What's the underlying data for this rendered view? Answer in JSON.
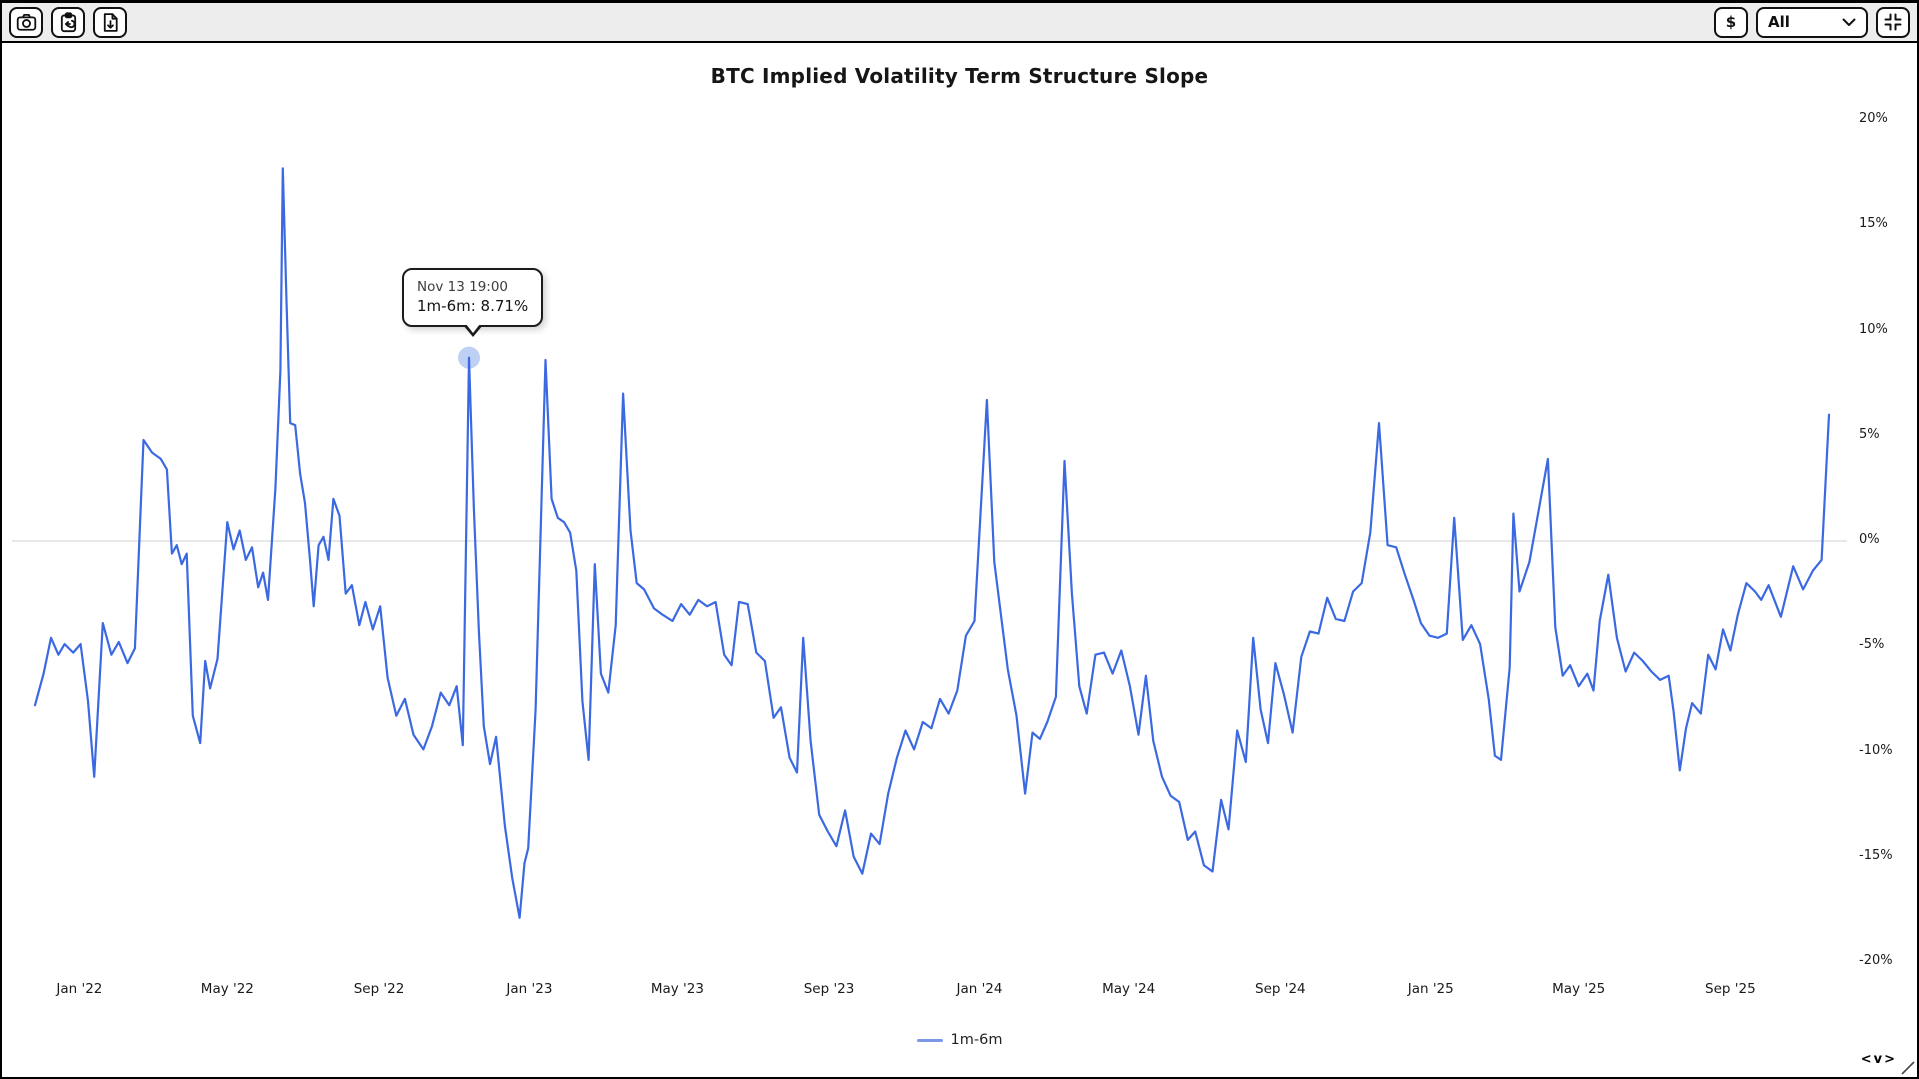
{
  "toolbar": {
    "screenshot_button": {
      "icon": "camera-icon"
    },
    "copy_button": {
      "icon": "clipboard-paste-icon"
    },
    "download_button": {
      "icon": "file-download-icon"
    },
    "currency_button": {
      "label": "$"
    },
    "range_select": {
      "value": "All",
      "icon": "chevron-down-icon"
    },
    "fit_button": {
      "icon": "collapse-corners-icon"
    }
  },
  "tooltip": {
    "date_label": "Nov 13 19:00",
    "value_label": "1m-6m: 8.71%"
  },
  "legend": {
    "series_label": "1m-6m"
  },
  "pan_controls": {
    "left": "<",
    "down": "v",
    "right": ">"
  },
  "chart_data": {
    "type": "line",
    "title": "BTC Implied Volatility Term Structure Slope",
    "xlabel": "",
    "ylabel": "",
    "ylim": [
      -20,
      20
    ],
    "grid": "zero-line-only",
    "legend_position": "bottom",
    "colors": {
      "line": "#3b69e1",
      "legend_swatch": "#7d96ea",
      "marker_fill": "#b8cbf4",
      "gridline": "#d9d9d9",
      "text": "#1a1a1a"
    },
    "y_axis": {
      "side": "right",
      "ticks": [
        {
          "v": 20,
          "label": "20%"
        },
        {
          "v": 15,
          "label": "15%"
        },
        {
          "v": 10,
          "label": "10%"
        },
        {
          "v": 5,
          "label": "5%"
        },
        {
          "v": 0,
          "label": "0%"
        },
        {
          "v": -5,
          "label": "-5%"
        },
        {
          "v": -10,
          "label": "-10%"
        },
        {
          "v": -15,
          "label": "-15%"
        },
        {
          "v": -20,
          "label": "-20%"
        }
      ]
    },
    "x_axis": {
      "ticks": [
        {
          "date": "2022-01-01",
          "label": "Jan '22"
        },
        {
          "date": "2022-05-01",
          "label": "May '22"
        },
        {
          "date": "2022-09-01",
          "label": "Sep '22"
        },
        {
          "date": "2023-01-01",
          "label": "Jan '23"
        },
        {
          "date": "2023-05-01",
          "label": "May '23"
        },
        {
          "date": "2023-09-01",
          "label": "Sep '23"
        },
        {
          "date": "2024-01-01",
          "label": "Jan '24"
        },
        {
          "date": "2024-05-01",
          "label": "May '24"
        },
        {
          "date": "2024-09-01",
          "label": "Sep '24"
        },
        {
          "date": "2025-01-01",
          "label": "Jan '25"
        },
        {
          "date": "2025-05-01",
          "label": "May '25"
        },
        {
          "date": "2025-09-01",
          "label": "Sep '25"
        }
      ]
    },
    "highlight": {
      "date": "2022-11-13",
      "value": 8.71
    },
    "series": [
      {
        "name": "1m-6m",
        "points": [
          [
            "2021-11-26",
            -7.8
          ],
          [
            "2021-12-03",
            -6.3
          ],
          [
            "2021-12-09",
            -4.6
          ],
          [
            "2021-12-15",
            -5.4
          ],
          [
            "2021-12-20",
            -4.9
          ],
          [
            "2021-12-27",
            -5.3
          ],
          [
            "2022-01-02",
            -4.9
          ],
          [
            "2022-01-08",
            -7.6
          ],
          [
            "2022-01-13",
            -11.2
          ],
          [
            "2022-01-20",
            -3.9
          ],
          [
            "2022-01-27",
            -5.4
          ],
          [
            "2022-02-02",
            -4.8
          ],
          [
            "2022-02-09",
            -5.8
          ],
          [
            "2022-02-15",
            -5.1
          ],
          [
            "2022-02-22",
            4.8
          ],
          [
            "2022-03-01",
            4.2
          ],
          [
            "2022-03-08",
            3.9
          ],
          [
            "2022-03-13",
            3.4
          ],
          [
            "2022-03-17",
            -0.6
          ],
          [
            "2022-03-21",
            -0.2
          ],
          [
            "2022-03-25",
            -1.1
          ],
          [
            "2022-03-29",
            -0.6
          ],
          [
            "2022-04-03",
            -8.3
          ],
          [
            "2022-04-09",
            -9.6
          ],
          [
            "2022-04-13",
            -5.7
          ],
          [
            "2022-04-17",
            -7.0
          ],
          [
            "2022-04-23",
            -5.6
          ],
          [
            "2022-05-01",
            0.9
          ],
          [
            "2022-05-06",
            -0.4
          ],
          [
            "2022-05-11",
            0.5
          ],
          [
            "2022-05-16",
            -0.9
          ],
          [
            "2022-05-21",
            -0.3
          ],
          [
            "2022-05-26",
            -2.2
          ],
          [
            "2022-05-30",
            -1.5
          ],
          [
            "2022-06-03",
            -2.8
          ],
          [
            "2022-06-09",
            2.5
          ],
          [
            "2022-06-13",
            8.1
          ],
          [
            "2022-06-15",
            17.7
          ],
          [
            "2022-06-18",
            11.4
          ],
          [
            "2022-06-21",
            5.6
          ],
          [
            "2022-06-25",
            5.5
          ],
          [
            "2022-06-29",
            3.2
          ],
          [
            "2022-07-03",
            1.8
          ],
          [
            "2022-07-07",
            -0.9
          ],
          [
            "2022-07-10",
            -3.1
          ],
          [
            "2022-07-14",
            -0.2
          ],
          [
            "2022-07-18",
            0.2
          ],
          [
            "2022-07-22",
            -0.9
          ],
          [
            "2022-07-26",
            2.0
          ],
          [
            "2022-07-31",
            1.2
          ],
          [
            "2022-08-05",
            -2.5
          ],
          [
            "2022-08-10",
            -2.1
          ],
          [
            "2022-08-16",
            -4.0
          ],
          [
            "2022-08-21",
            -2.9
          ],
          [
            "2022-08-27",
            -4.2
          ],
          [
            "2022-09-02",
            -3.1
          ],
          [
            "2022-09-08",
            -6.5
          ],
          [
            "2022-09-15",
            -8.3
          ],
          [
            "2022-09-22",
            -7.5
          ],
          [
            "2022-09-29",
            -9.2
          ],
          [
            "2022-10-07",
            -9.9
          ],
          [
            "2022-10-14",
            -8.8
          ],
          [
            "2022-10-21",
            -7.2
          ],
          [
            "2022-10-28",
            -7.8
          ],
          [
            "2022-11-03",
            -6.9
          ],
          [
            "2022-11-08",
            -9.7
          ],
          [
            "2022-11-13",
            8.71
          ],
          [
            "2022-11-17",
            1.5
          ],
          [
            "2022-11-21",
            -4.3
          ],
          [
            "2022-11-25",
            -8.8
          ],
          [
            "2022-11-30",
            -10.6
          ],
          [
            "2022-12-05",
            -9.3
          ],
          [
            "2022-12-12",
            -13.5
          ],
          [
            "2022-12-18",
            -16.0
          ],
          [
            "2022-12-24",
            -17.9
          ],
          [
            "2022-12-28",
            -15.3
          ],
          [
            "2022-12-31",
            -14.6
          ],
          [
            "2023-01-06",
            -8.0
          ],
          [
            "2023-01-14",
            8.6
          ],
          [
            "2023-01-19",
            2.0
          ],
          [
            "2023-01-24",
            1.1
          ],
          [
            "2023-01-29",
            0.9
          ],
          [
            "2023-02-03",
            0.4
          ],
          [
            "2023-02-08",
            -1.4
          ],
          [
            "2023-02-13",
            -7.6
          ],
          [
            "2023-02-18",
            -10.4
          ],
          [
            "2023-02-23",
            -1.1
          ],
          [
            "2023-02-28",
            -6.3
          ],
          [
            "2023-03-06",
            -7.2
          ],
          [
            "2023-03-12",
            -4.0
          ],
          [
            "2023-03-18",
            7.0
          ],
          [
            "2023-03-24",
            0.5
          ],
          [
            "2023-03-29",
            -2.0
          ],
          [
            "2023-04-04",
            -2.3
          ],
          [
            "2023-04-12",
            -3.2
          ],
          [
            "2023-04-19",
            -3.5
          ],
          [
            "2023-04-27",
            -3.8
          ],
          [
            "2023-05-04",
            -3.0
          ],
          [
            "2023-05-11",
            -3.5
          ],
          [
            "2023-05-18",
            -2.8
          ],
          [
            "2023-05-25",
            -3.1
          ],
          [
            "2023-06-01",
            -2.9
          ],
          [
            "2023-06-08",
            -5.4
          ],
          [
            "2023-06-14",
            -5.9
          ],
          [
            "2023-06-20",
            -2.9
          ],
          [
            "2023-06-27",
            -3.0
          ],
          [
            "2023-07-04",
            -5.3
          ],
          [
            "2023-07-11",
            -5.7
          ],
          [
            "2023-07-18",
            -8.4
          ],
          [
            "2023-07-24",
            -7.9
          ],
          [
            "2023-07-31",
            -10.3
          ],
          [
            "2023-08-06",
            -11.0
          ],
          [
            "2023-08-11",
            -4.6
          ],
          [
            "2023-08-17",
            -9.5
          ],
          [
            "2023-08-24",
            -13.0
          ],
          [
            "2023-08-31",
            -13.8
          ],
          [
            "2023-09-07",
            -14.5
          ],
          [
            "2023-09-14",
            -12.8
          ],
          [
            "2023-09-21",
            -15.0
          ],
          [
            "2023-09-28",
            -15.8
          ],
          [
            "2023-10-05",
            -13.9
          ],
          [
            "2023-10-12",
            -14.4
          ],
          [
            "2023-10-19",
            -12.0
          ],
          [
            "2023-10-26",
            -10.3
          ],
          [
            "2023-11-02",
            -9.0
          ],
          [
            "2023-11-09",
            -9.9
          ],
          [
            "2023-11-16",
            -8.6
          ],
          [
            "2023-11-23",
            -8.9
          ],
          [
            "2023-11-30",
            -7.5
          ],
          [
            "2023-12-07",
            -8.2
          ],
          [
            "2023-12-14",
            -7.1
          ],
          [
            "2023-12-21",
            -4.5
          ],
          [
            "2023-12-28",
            -3.8
          ],
          [
            "2024-01-07",
            6.7
          ],
          [
            "2024-01-13",
            -1.0
          ],
          [
            "2024-01-18",
            -3.3
          ],
          [
            "2024-01-24",
            -6.1
          ],
          [
            "2024-01-31",
            -8.3
          ],
          [
            "2024-02-07",
            -12.0
          ],
          [
            "2024-02-13",
            -9.1
          ],
          [
            "2024-02-19",
            -9.4
          ],
          [
            "2024-02-25",
            -8.6
          ],
          [
            "2024-03-03",
            -7.4
          ],
          [
            "2024-03-10",
            3.8
          ],
          [
            "2024-03-16",
            -2.5
          ],
          [
            "2024-03-22",
            -6.9
          ],
          [
            "2024-03-28",
            -8.2
          ],
          [
            "2024-04-04",
            -5.4
          ],
          [
            "2024-04-11",
            -5.3
          ],
          [
            "2024-04-18",
            -6.3
          ],
          [
            "2024-04-25",
            -5.2
          ],
          [
            "2024-05-02",
            -6.9
          ],
          [
            "2024-05-09",
            -9.2
          ],
          [
            "2024-05-15",
            -6.4
          ],
          [
            "2024-05-21",
            -9.5
          ],
          [
            "2024-05-28",
            -11.2
          ],
          [
            "2024-06-04",
            -12.1
          ],
          [
            "2024-06-11",
            -12.4
          ],
          [
            "2024-06-18",
            -14.2
          ],
          [
            "2024-06-24",
            -13.8
          ],
          [
            "2024-07-01",
            -15.4
          ],
          [
            "2024-07-08",
            -15.7
          ],
          [
            "2024-07-15",
            -12.3
          ],
          [
            "2024-07-21",
            -13.7
          ],
          [
            "2024-07-28",
            -9.0
          ],
          [
            "2024-08-04",
            -10.5
          ],
          [
            "2024-08-10",
            -4.6
          ],
          [
            "2024-08-16",
            -8.0
          ],
          [
            "2024-08-22",
            -9.6
          ],
          [
            "2024-08-28",
            -5.8
          ],
          [
            "2024-09-04",
            -7.3
          ],
          [
            "2024-09-11",
            -9.1
          ],
          [
            "2024-09-18",
            -5.5
          ],
          [
            "2024-09-25",
            -4.3
          ],
          [
            "2024-10-02",
            -4.4
          ],
          [
            "2024-10-09",
            -2.7
          ],
          [
            "2024-10-16",
            -3.7
          ],
          [
            "2024-10-23",
            -3.8
          ],
          [
            "2024-10-30",
            -2.4
          ],
          [
            "2024-11-06",
            -2.0
          ],
          [
            "2024-11-13",
            0.4
          ],
          [
            "2024-11-20",
            5.6
          ],
          [
            "2024-11-27",
            -0.2
          ],
          [
            "2024-12-04",
            -0.3
          ],
          [
            "2024-12-11",
            -1.6
          ],
          [
            "2024-12-18",
            -2.8
          ],
          [
            "2024-12-24",
            -3.9
          ],
          [
            "2024-12-31",
            -4.5
          ],
          [
            "2025-01-07",
            -4.6
          ],
          [
            "2025-01-14",
            -4.4
          ],
          [
            "2025-01-20",
            1.1
          ],
          [
            "2025-01-27",
            -4.7
          ],
          [
            "2025-02-03",
            -4.0
          ],
          [
            "2025-02-10",
            -4.9
          ],
          [
            "2025-02-17",
            -7.5
          ],
          [
            "2025-02-22",
            -10.2
          ],
          [
            "2025-02-27",
            -10.4
          ],
          [
            "2025-03-06",
            -6.0
          ],
          [
            "2025-03-09",
            1.3
          ],
          [
            "2025-03-14",
            -2.4
          ],
          [
            "2025-03-22",
            -1.0
          ],
          [
            "2025-04-06",
            3.9
          ],
          [
            "2025-04-12",
            -4.1
          ],
          [
            "2025-04-18",
            -6.4
          ],
          [
            "2025-04-24",
            -5.9
          ],
          [
            "2025-05-01",
            -6.9
          ],
          [
            "2025-05-08",
            -6.3
          ],
          [
            "2025-05-13",
            -7.1
          ],
          [
            "2025-05-18",
            -3.8
          ],
          [
            "2025-05-25",
            -1.6
          ],
          [
            "2025-06-01",
            -4.6
          ],
          [
            "2025-06-08",
            -6.2
          ],
          [
            "2025-06-15",
            -5.3
          ],
          [
            "2025-06-22",
            -5.7
          ],
          [
            "2025-06-29",
            -6.2
          ],
          [
            "2025-07-06",
            -6.6
          ],
          [
            "2025-07-13",
            -6.4
          ],
          [
            "2025-07-17",
            -8.1
          ],
          [
            "2025-07-22",
            -10.9
          ],
          [
            "2025-07-27",
            -8.9
          ],
          [
            "2025-08-01",
            -7.7
          ],
          [
            "2025-08-08",
            -8.2
          ],
          [
            "2025-08-14",
            -5.4
          ],
          [
            "2025-08-20",
            -6.1
          ],
          [
            "2025-08-26",
            -4.2
          ],
          [
            "2025-09-01",
            -5.2
          ],
          [
            "2025-09-07",
            -3.5
          ],
          [
            "2025-09-14",
            -2.0
          ],
          [
            "2025-09-21",
            -2.4
          ],
          [
            "2025-09-26",
            -2.8
          ],
          [
            "2025-10-02",
            -2.1
          ],
          [
            "2025-10-12",
            -3.6
          ],
          [
            "2025-10-22",
            -1.2
          ],
          [
            "2025-10-30",
            -2.3
          ],
          [
            "2025-11-07",
            -1.4
          ],
          [
            "2025-11-14",
            -0.9
          ],
          [
            "2025-11-20",
            6.0
          ]
        ]
      }
    ]
  }
}
